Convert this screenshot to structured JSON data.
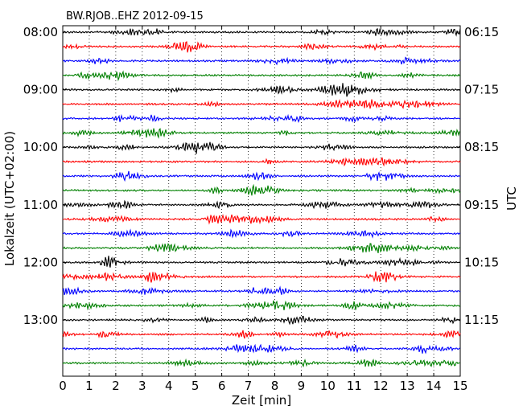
{
  "chart_data": {
    "type": "line",
    "title": "BW.RJOB..EHZ 2012-09-15",
    "xlabel": "Zeit  [min]",
    "ylabel_left": "Lokalzeit (UTC+02:00)",
    "ylabel_right": "UTC",
    "xlim": [
      0,
      15
    ],
    "x_ticks": [
      0,
      1,
      2,
      3,
      4,
      5,
      6,
      7,
      8,
      9,
      10,
      11,
      12,
      13,
      14,
      15
    ],
    "grid": "vertical dotted",
    "row_interval_minutes": 15,
    "row_count": 24,
    "color_cycle": [
      "#000000",
      "#ff0000",
      "#0000ff",
      "#008000"
    ],
    "left_tick_labels": [
      "08:00",
      "09:00",
      "10:00",
      "11:00",
      "12:00",
      "13:00"
    ],
    "right_tick_labels": [
      "06:15",
      "07:15",
      "08:15",
      "09:15",
      "10:15",
      "11:15"
    ],
    "tick_rows": [
      0,
      4,
      8,
      12,
      16,
      20
    ]
  }
}
